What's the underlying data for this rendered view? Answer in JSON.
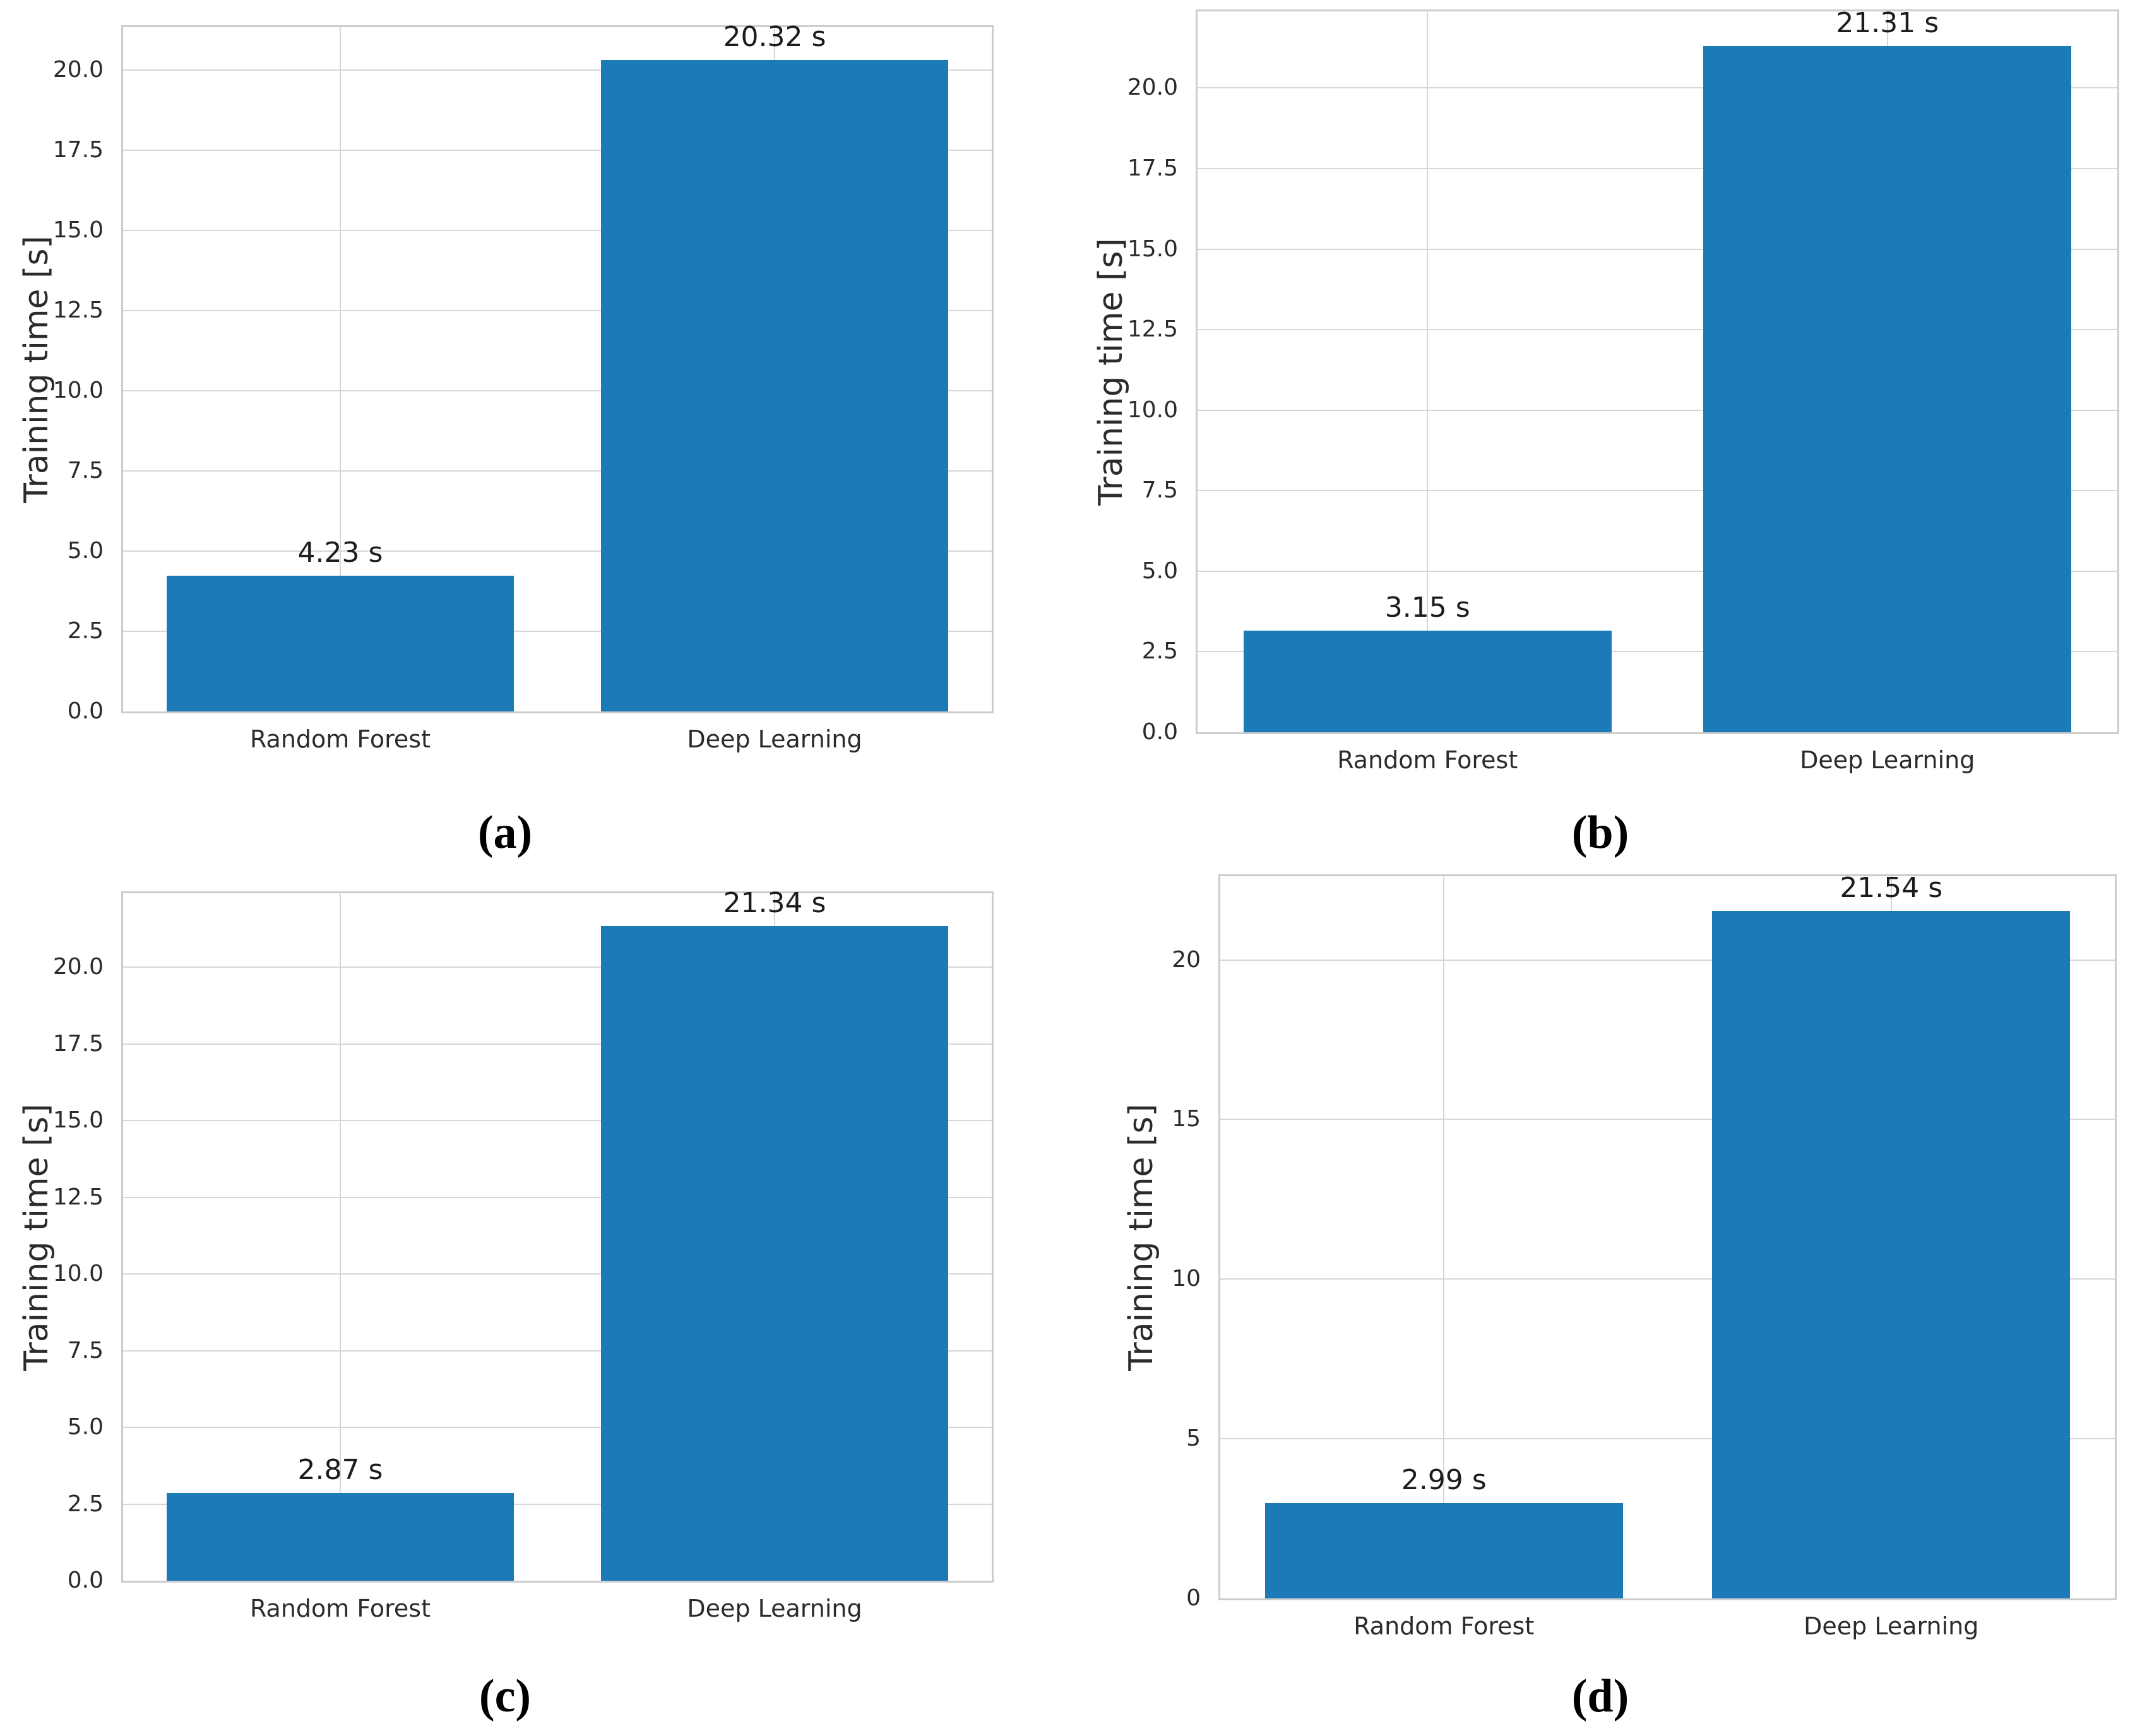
{
  "style": {
    "bar_color": "#1c7ab8",
    "grid_color": "#d7d7d7",
    "spine_color": "#cccccc",
    "text_color": "#2b2b2b",
    "caption_color": "#000000"
  },
  "chart_data": [
    {
      "id": "a",
      "type": "bar",
      "caption": "(a)",
      "title": "",
      "xlabel": "",
      "ylabel": "Training time [s]",
      "categories": [
        "Random Forest",
        "Deep Learning"
      ],
      "values": [
        4.23,
        20.32
      ],
      "bar_labels": [
        "4.23 s",
        "20.32 s"
      ],
      "ytick_values": [
        0,
        2.5,
        5,
        7.5,
        10,
        12.5,
        15,
        17.5,
        20
      ],
      "ytick_labels": [
        "0.0",
        "2.5",
        "5.0",
        "7.5",
        "10.0",
        "12.5",
        "15.0",
        "17.5",
        "20.0"
      ],
      "ylim": [
        0,
        21.34
      ],
      "grid": true,
      "legend": false
    },
    {
      "id": "b",
      "type": "bar",
      "caption": "(b)",
      "title": "",
      "xlabel": "",
      "ylabel": "Training time [s]",
      "categories": [
        "Random Forest",
        "Deep Learning"
      ],
      "values": [
        3.15,
        21.31
      ],
      "bar_labels": [
        "3.15 s",
        "21.31 s"
      ],
      "ytick_values": [
        0,
        2.5,
        5,
        7.5,
        10,
        12.5,
        15,
        17.5,
        20
      ],
      "ytick_labels": [
        "0.0",
        "2.5",
        "5.0",
        "7.5",
        "10.0",
        "12.5",
        "15.0",
        "17.5",
        "20.0"
      ],
      "ylim": [
        0,
        22.38
      ],
      "grid": true,
      "legend": false
    },
    {
      "id": "c",
      "type": "bar",
      "caption": "(c)",
      "title": "",
      "xlabel": "",
      "ylabel": "Training time [s]",
      "categories": [
        "Random Forest",
        "Deep Learning"
      ],
      "values": [
        2.87,
        21.34
      ],
      "bar_labels": [
        "2.87 s",
        "21.34 s"
      ],
      "ytick_values": [
        0,
        2.5,
        5,
        7.5,
        10,
        12.5,
        15,
        17.5,
        20
      ],
      "ytick_labels": [
        "0.0",
        "2.5",
        "5.0",
        "7.5",
        "10.0",
        "12.5",
        "15.0",
        "17.5",
        "20.0"
      ],
      "ylim": [
        0,
        22.41
      ],
      "grid": true,
      "legend": false
    },
    {
      "id": "d",
      "type": "bar",
      "caption": "(d)",
      "title": "",
      "xlabel": "",
      "ylabel": "Training time [s]",
      "categories": [
        "Random Forest",
        "Deep Learning"
      ],
      "values": [
        2.99,
        21.54
      ],
      "bar_labels": [
        "2.99 s",
        "21.54 s"
      ],
      "ytick_values": [
        0,
        5,
        10,
        15,
        20
      ],
      "ytick_labels": [
        "0",
        "5",
        "10",
        "15",
        "20"
      ],
      "ylim": [
        0,
        22.62
      ],
      "grid": true,
      "legend": false
    }
  ]
}
